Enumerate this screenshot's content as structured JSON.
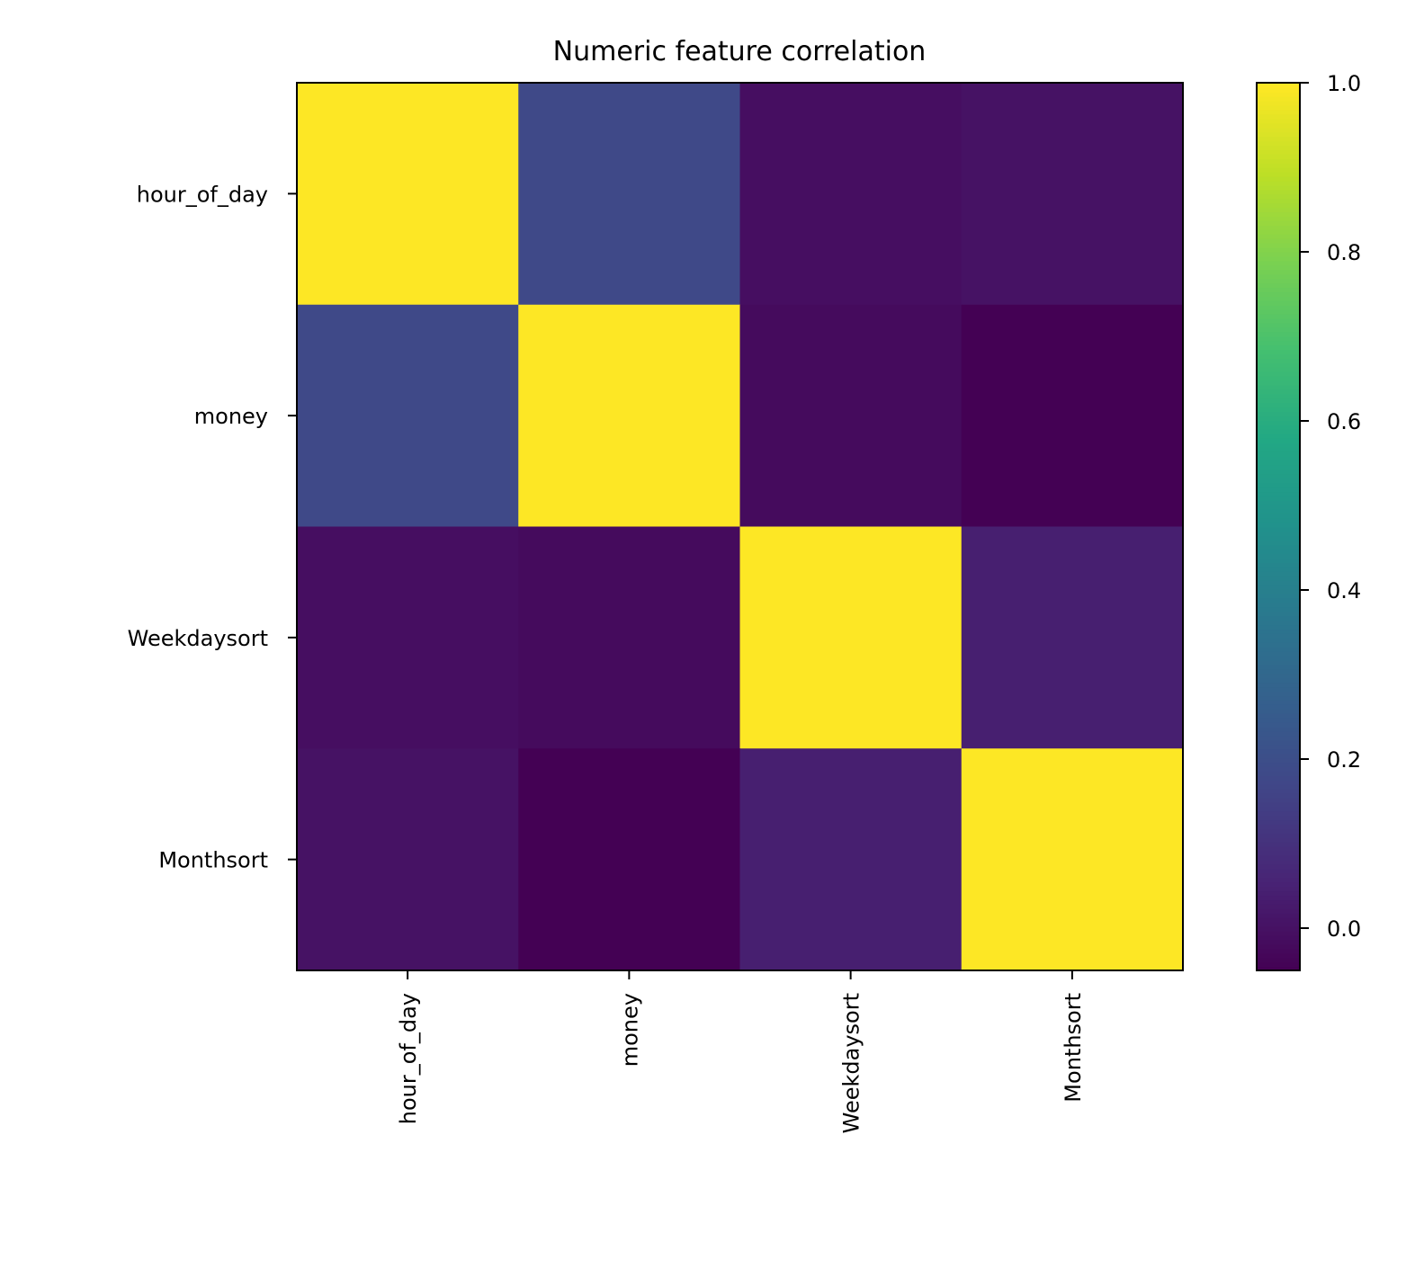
{
  "chart_data": {
    "type": "heatmap",
    "title": "Numeric feature correlation",
    "x_categories": [
      "hour_of_day",
      "money",
      "Weekdaysort",
      "Monthsort"
    ],
    "y_categories": [
      "hour_of_day",
      "money",
      "Weekdaysort",
      "Monthsort"
    ],
    "values": [
      [
        1.0,
        0.18,
        -0.01,
        0.0
      ],
      [
        0.18,
        1.0,
        -0.02,
        -0.05
      ],
      [
        -0.01,
        -0.02,
        1.0,
        0.04
      ],
      [
        0.0,
        -0.05,
        0.04,
        1.0
      ]
    ],
    "colormap": "viridis",
    "colorbar": {
      "vmin": -0.05,
      "vmax": 1.0,
      "ticks": [
        0.0,
        0.2,
        0.4,
        0.6,
        0.8,
        1.0
      ],
      "tick_labels": [
        "0.0",
        "0.2",
        "0.4",
        "0.6",
        "0.8",
        "1.0"
      ]
    },
    "x_tick_rotation": 90,
    "grid": false
  }
}
